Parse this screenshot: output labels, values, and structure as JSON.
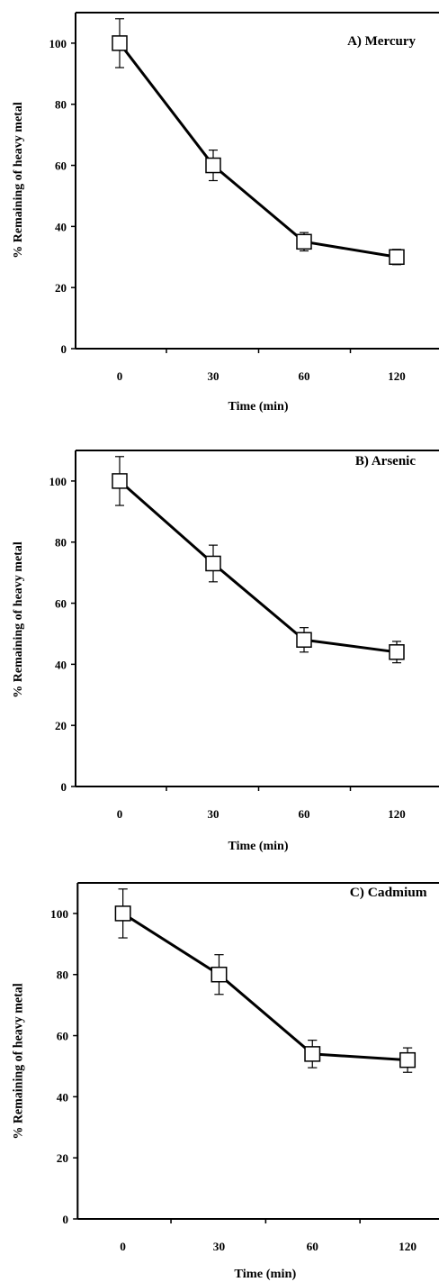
{
  "chart_data": [
    {
      "type": "line",
      "title": "A) Mercury",
      "xlabel": "Time (min)",
      "ylabel": "% Remaining of heavy metal",
      "categories": [
        "0",
        "30",
        "60",
        "120"
      ],
      "values": [
        100,
        60,
        35,
        30
      ],
      "errors": [
        8,
        5,
        3,
        2.5
      ],
      "ylim": [
        0,
        110
      ],
      "yticks": [
        "0",
        "20",
        "40",
        "60",
        "80",
        "100"
      ],
      "marker": "open-square",
      "line_color": "#000000",
      "grid": false
    },
    {
      "type": "line",
      "title": "B) Arsenic",
      "xlabel": "Time (min)",
      "ylabel": "% Remaining of heavy metal",
      "categories": [
        "0",
        "30",
        "60",
        "120"
      ],
      "values": [
        100,
        73,
        48,
        44
      ],
      "errors": [
        8,
        6,
        4,
        3.5
      ],
      "ylim": [
        0,
        110
      ],
      "yticks": [
        "0",
        "20",
        "40",
        "60",
        "80",
        "100"
      ],
      "marker": "open-square",
      "line_color": "#000000",
      "grid": false
    },
    {
      "type": "line",
      "title": "C) Cadmium",
      "xlabel": "Time (min)",
      "ylabel": "% Remaining of heavy metal",
      "categories": [
        "0",
        "30",
        "60",
        "120"
      ],
      "values": [
        100,
        80,
        54,
        52
      ],
      "errors": [
        8,
        6.5,
        4.5,
        4
      ],
      "ylim": [
        0,
        110
      ],
      "yticks": [
        "0",
        "20",
        "40",
        "60",
        "80",
        "100"
      ],
      "marker": "open-square",
      "line_color": "#000000",
      "grid": false
    }
  ]
}
